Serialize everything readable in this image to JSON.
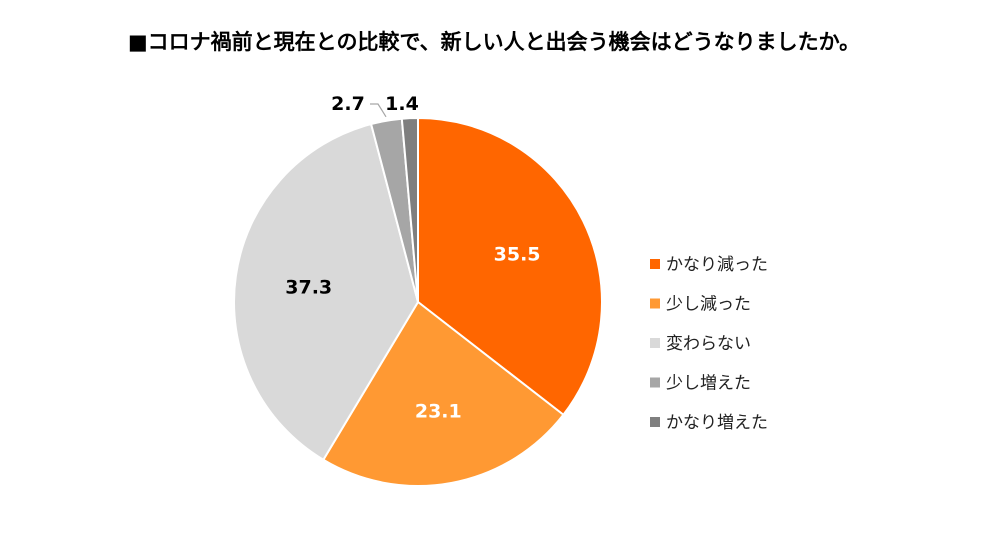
{
  "chart_data": {
    "type": "pie",
    "title": "■コロナ禍前と現在との比較で、新しい人と出会う機会はどうなりましたか。",
    "start": "12 o'clock",
    "direction": "clockwise",
    "legend_placement": "right",
    "slices": [
      {
        "label": "かなり減った",
        "value": 35.5,
        "display": "35.5",
        "color": "#FF6600",
        "label_color": "#FFFFFF"
      },
      {
        "label": "少し減った",
        "value": 23.1,
        "display": "23.1",
        "color": "#FF9933",
        "label_color": "#FFFFFF"
      },
      {
        "label": "変わらない",
        "value": 37.3,
        "display": "37.3",
        "color": "#D9D9D9",
        "label_color": "#000000"
      },
      {
        "label": "少し増えた",
        "value": 2.7,
        "display": "2.7",
        "color": "#A6A6A6",
        "label_color": "#000000"
      },
      {
        "label": "かなり増えた",
        "value": 1.4,
        "display": "1.4",
        "color": "#7F7F7F",
        "label_color": "#000000"
      }
    ]
  }
}
